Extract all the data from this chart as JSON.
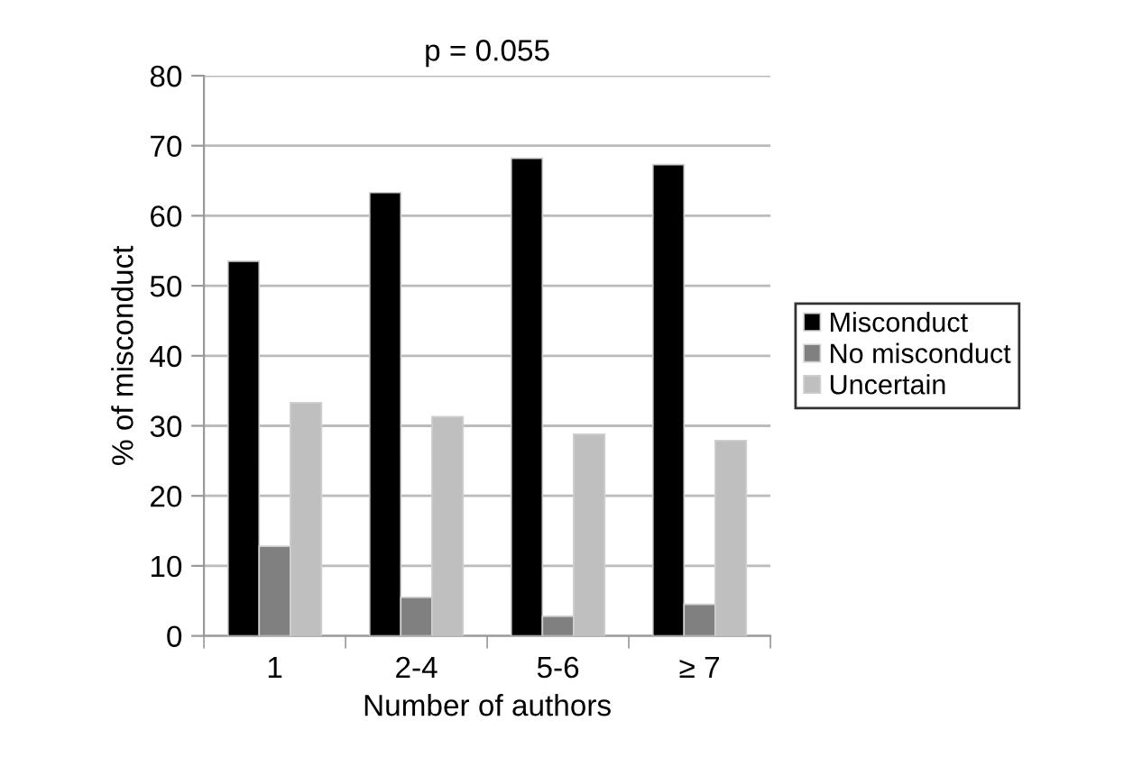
{
  "chart_data": {
    "type": "bar",
    "title": "p = 0.055",
    "xlabel": "Number of authors",
    "ylabel": "% of misconduct",
    "categories": [
      "1",
      "2-4",
      "5-6",
      "≥ 7"
    ],
    "series": [
      {
        "name": "Misconduct",
        "color": "#000000",
        "values": [
          53.5,
          63.3,
          68.2,
          67.3
        ]
      },
      {
        "name": "No misconduct",
        "color": "#808080",
        "values": [
          12.8,
          5.5,
          2.8,
          4.5
        ]
      },
      {
        "name": "Uncertain",
        "color": "#bfbfbf",
        "values": [
          33.3,
          31.3,
          28.8,
          27.9
        ]
      }
    ],
    "ylim": [
      0,
      80
    ],
    "yticks": [
      0,
      10,
      20,
      30,
      40,
      50,
      60,
      70,
      80
    ],
    "grid": "y",
    "legend": "right"
  }
}
